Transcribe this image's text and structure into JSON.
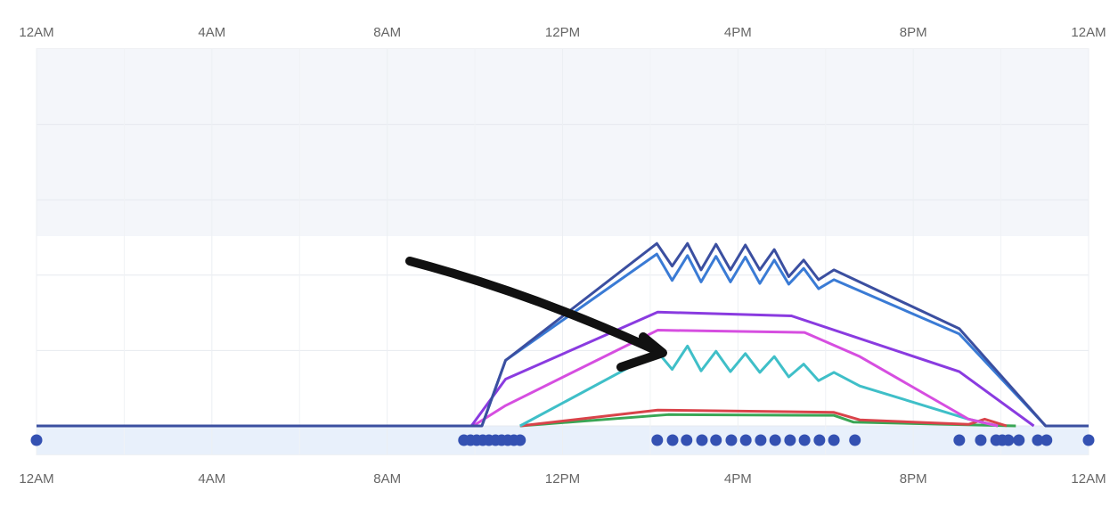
{
  "chart_data": {
    "type": "line",
    "xlim": [
      0,
      24
    ],
    "xticks": [
      {
        "value": 0,
        "label": "12AM"
      },
      {
        "value": 4,
        "label": "4AM"
      },
      {
        "value": 8,
        "label": "8AM"
      },
      {
        "value": 12,
        "label": "12PM"
      },
      {
        "value": 16,
        "label": "4PM"
      },
      {
        "value": 20,
        "label": "8PM"
      },
      {
        "value": 24,
        "label": "12AM"
      }
    ],
    "ylim": [
      0,
      5
    ],
    "yticks": [
      0,
      1,
      2,
      3,
      4
    ],
    "grid": true,
    "series": [
      {
        "color": "#3b4fa0",
        "x": [
          0,
          10.16,
          10.7,
          14.15,
          14.5,
          14.85,
          15.16,
          15.5,
          15.83,
          16.17,
          16.5,
          16.83,
          17.16,
          17.5,
          17.84,
          18.19,
          21.05,
          23.02,
          24
        ],
        "values": [
          0,
          0,
          0.87,
          2.42,
          2.12,
          2.42,
          2.07,
          2.41,
          2.07,
          2.4,
          2.07,
          2.34,
          1.98,
          2.2,
          1.94,
          2.07,
          1.29,
          0,
          0
        ]
      },
      {
        "color": "#3a7bd5",
        "x": [
          10.16,
          10.7,
          14.15,
          14.5,
          14.85,
          15.16,
          15.5,
          15.83,
          16.17,
          16.5,
          16.83,
          17.16,
          17.5,
          17.84,
          18.19,
          21.05,
          23.02
        ],
        "values": [
          0,
          0.87,
          2.28,
          1.93,
          2.26,
          1.91,
          2.25,
          1.91,
          2.24,
          1.89,
          2.2,
          1.88,
          2.09,
          1.82,
          1.94,
          1.22,
          0
        ]
      },
      {
        "color": "#8a3be0",
        "x": [
          9.92,
          10.7,
          14.17,
          17.22,
          21.05,
          22.75
        ],
        "values": [
          0,
          0.62,
          1.51,
          1.46,
          0.72,
          0
        ]
      },
      {
        "color": "#d64ee0",
        "x": [
          9.96,
          10.7,
          14.17,
          17.52,
          18.78,
          21.26,
          21.93
        ],
        "values": [
          0,
          0.27,
          1.27,
          1.24,
          0.92,
          0.09,
          0
        ]
      },
      {
        "color": "#3fbfc8",
        "x": [
          11.03,
          14.17,
          14.5,
          14.85,
          15.16,
          15.5,
          15.83,
          16.17,
          16.5,
          16.83,
          17.16,
          17.5,
          17.84,
          18.19,
          18.78,
          21.26,
          21.93
        ],
        "values": [
          0,
          0.98,
          0.75,
          1.06,
          0.73,
          0.99,
          0.72,
          0.96,
          0.71,
          0.92,
          0.65,
          0.82,
          0.6,
          0.71,
          0.53,
          0.09,
          0
        ]
      },
      {
        "color": "#d9434a",
        "x": [
          11.03,
          14.17,
          18.19,
          18.78,
          21.26,
          21.63,
          22.13
        ],
        "values": [
          0,
          0.21,
          0.18,
          0.08,
          0.02,
          0.09,
          0
        ]
      },
      {
        "color": "#3aa655",
        "x": [
          11.03,
          14.41,
          18.19,
          18.64,
          22.34
        ],
        "values": [
          0,
          0.15,
          0.14,
          0.05,
          0
        ]
      }
    ],
    "events": {
      "color": "#3451b2",
      "x": [
        0,
        9.75,
        9.9,
        10.04,
        10.18,
        10.32,
        10.47,
        10.61,
        10.75,
        10.89,
        11.03,
        14.16,
        14.51,
        14.83,
        15.18,
        15.5,
        15.85,
        16.18,
        16.52,
        16.85,
        17.19,
        17.52,
        17.86,
        18.19,
        18.67,
        21.05,
        21.54,
        21.89,
        22.03,
        22.17,
        22.41,
        22.84,
        23.04,
        24
      ]
    }
  }
}
